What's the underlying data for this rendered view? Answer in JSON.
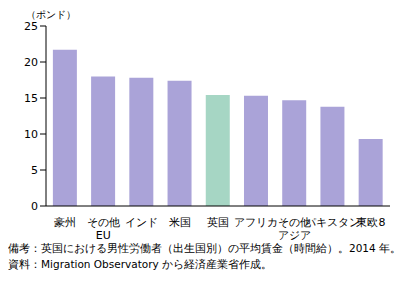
{
  "chart_data": {
    "type": "bar",
    "y_label": "（ポンド）",
    "categories": [
      "豪州",
      "その他\nEU",
      "インド",
      "米国",
      "英国",
      "アフリカ",
      "その他\nアジア",
      "パキスタン",
      "東欧8"
    ],
    "values": [
      21.7,
      18.0,
      17.8,
      17.4,
      15.4,
      15.3,
      14.7,
      13.8,
      9.3
    ],
    "colors": [
      "#aaa3d8",
      "#aaa3d8",
      "#aaa3d8",
      "#aaa3d8",
      "#a6d6c4",
      "#aaa3d8",
      "#aaa3d8",
      "#aaa3d8",
      "#aaa3d8"
    ],
    "ylim": [
      0,
      25
    ],
    "yticks": [
      0,
      5,
      10,
      15,
      20,
      25
    ],
    "grid": false,
    "annotations": [
      "備考：英国における男性労働者（出生国別）の平均賃金（時間給）。2014 年。",
      "資料：Migration Observatory から経済産業省作成。"
    ]
  }
}
